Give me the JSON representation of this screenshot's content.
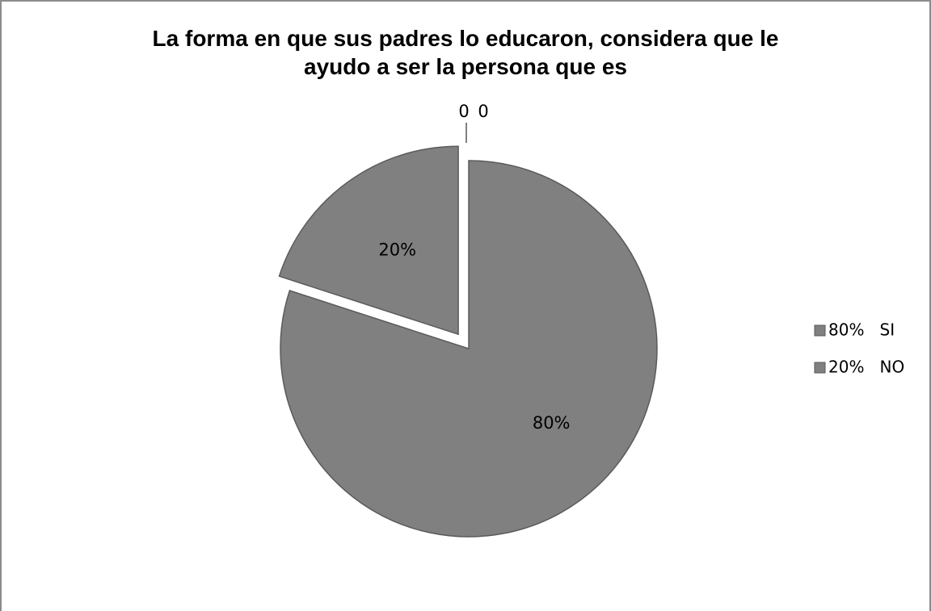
{
  "chart_data": {
    "type": "pie",
    "title_lines": [
      "La forma en que sus padres lo educaron, considera que le",
      "ayudo a ser la persona que es"
    ],
    "slices": [
      {
        "legend": "80%   SI",
        "value": 80,
        "data_label": "80%",
        "exploded": false
      },
      {
        "legend": "20%   NO",
        "value": 20,
        "data_label": "20%",
        "exploded": true
      },
      {
        "legend": "",
        "value": 0,
        "data_label": "0",
        "exploded": true
      },
      {
        "legend": "",
        "value": 0,
        "data_label": "0",
        "exploded": true
      }
    ],
    "legend_position": "right",
    "colors": {
      "slice_fill": "#808080",
      "slice_stroke": "#5a5a5a",
      "frame": "#8c8c8c"
    }
  }
}
